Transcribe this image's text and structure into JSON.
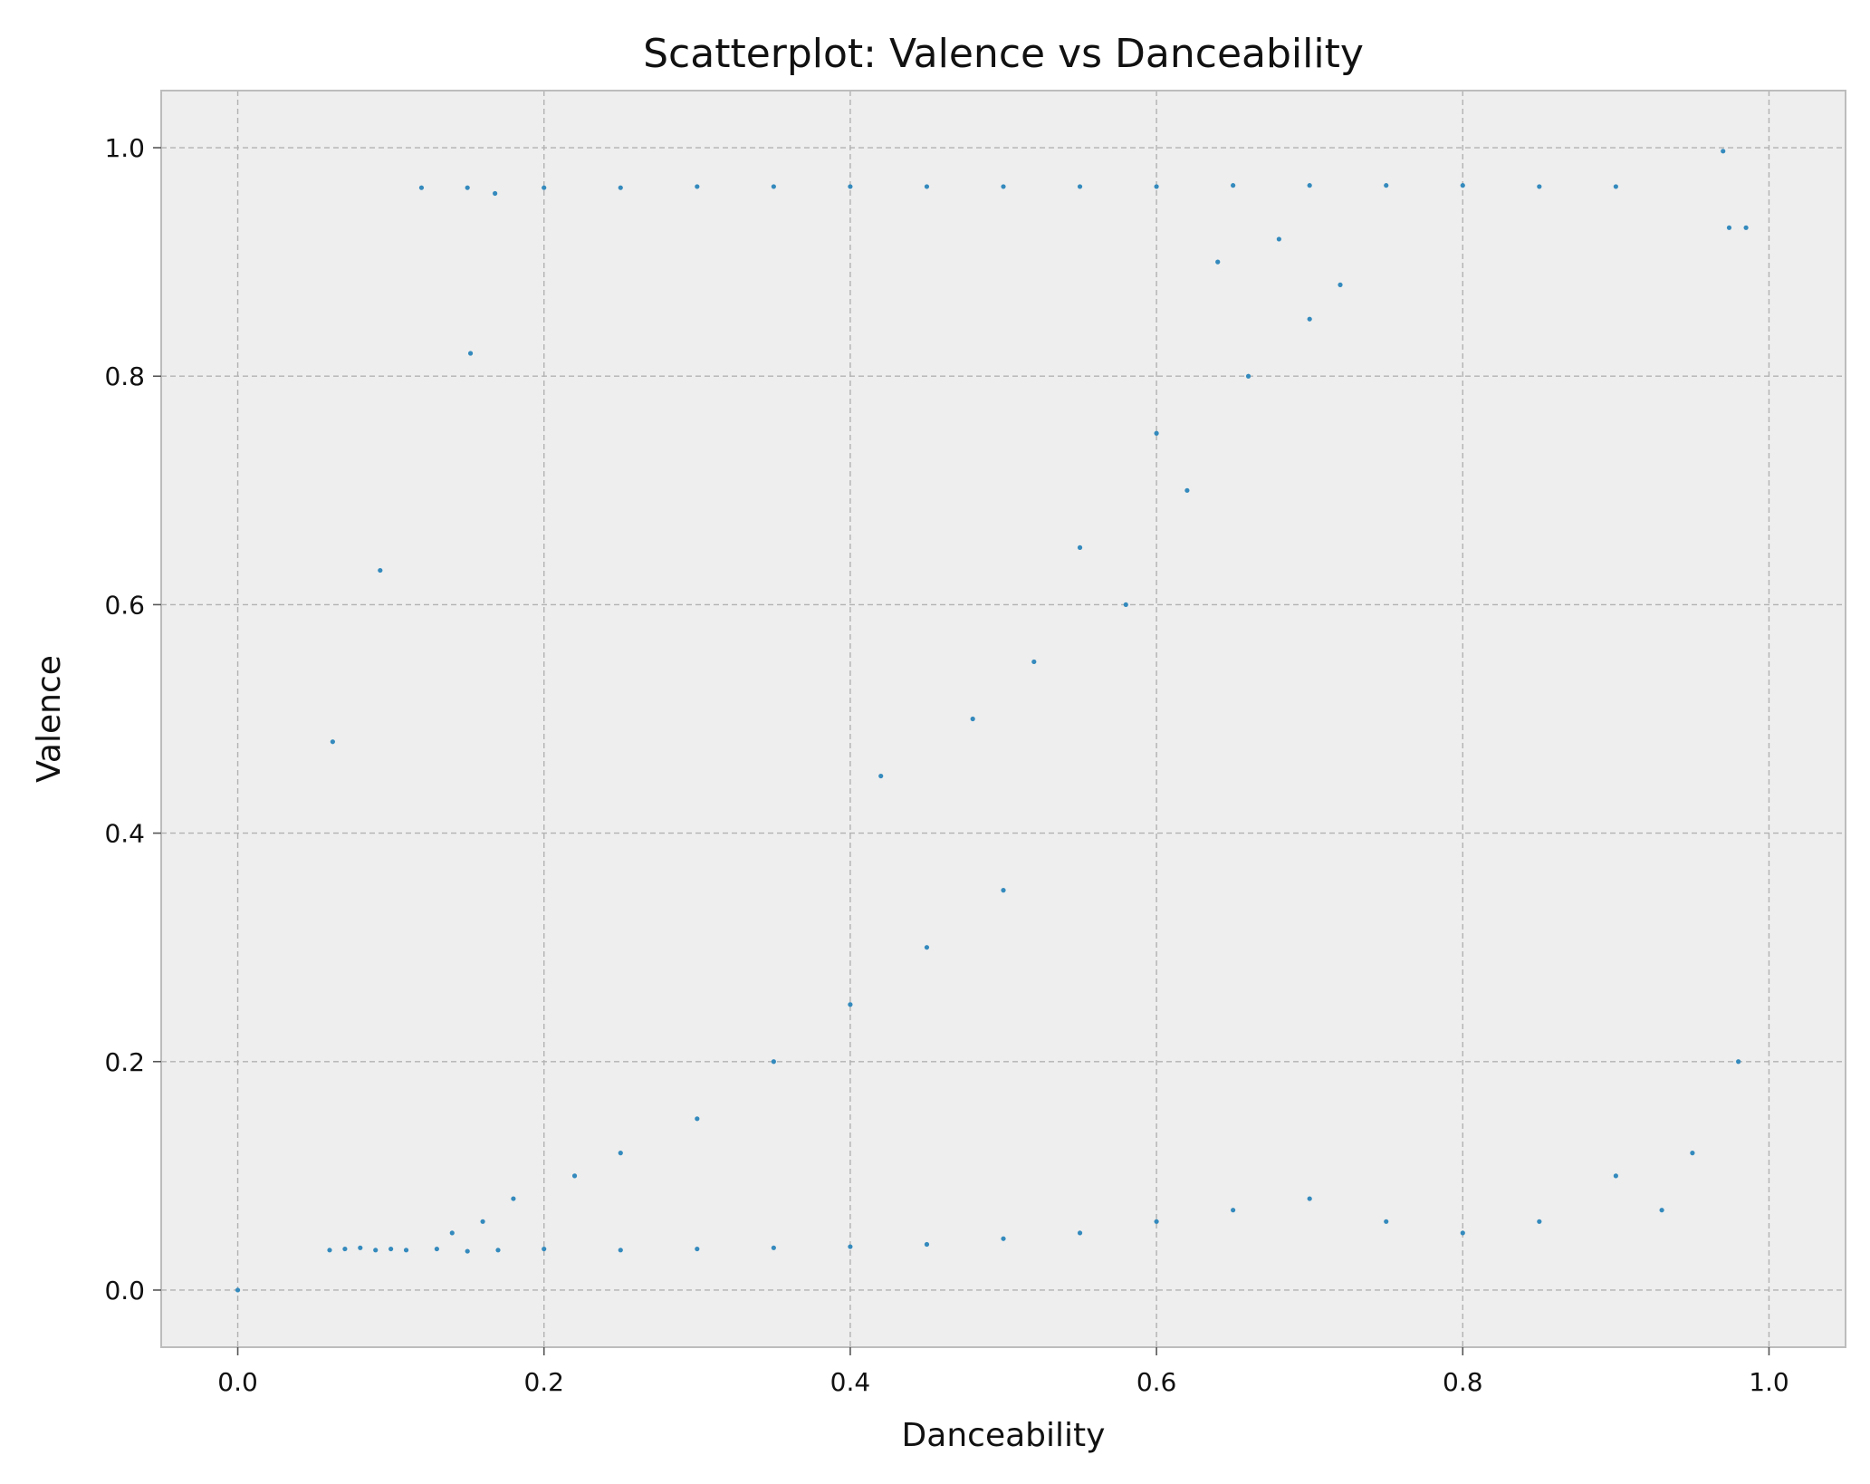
{
  "chart_data": {
    "type": "scatter",
    "title": "Scatterplot: Valence vs Danceability",
    "xlabel": "Danceability",
    "ylabel": "Valence",
    "xlim": [
      -0.05,
      1.05
    ],
    "ylim": [
      -0.05,
      1.05
    ],
    "xticks": [
      0.0,
      0.2,
      0.4,
      0.6,
      0.8,
      1.0
    ],
    "yticks": [
      0.0,
      0.2,
      0.4,
      0.6,
      0.8,
      1.0
    ],
    "xtick_labels": [
      "0.0",
      "0.2",
      "0.4",
      "0.6",
      "0.8",
      "1.0"
    ],
    "ytick_labels": [
      "0.0",
      "0.2",
      "0.4",
      "0.6",
      "0.8",
      "1.0"
    ],
    "grid": true,
    "grid_style": "dashed",
    "point_color": "#348ABD",
    "background_color": "#EEEEEE",
    "series": [
      {
        "x": [
          0.0,
          0.06,
          0.07,
          0.08,
          0.09,
          0.1,
          0.11,
          0.13,
          0.15,
          0.17,
          0.2,
          0.25,
          0.3,
          0.35,
          0.4,
          0.45,
          0.5,
          0.55,
          0.6,
          0.65,
          0.7,
          0.75,
          0.8,
          0.85,
          0.9,
          0.95,
          0.98,
          0.062,
          0.093,
          0.152,
          0.168,
          0.12,
          0.15,
          0.2,
          0.25,
          0.3,
          0.35,
          0.4,
          0.45,
          0.5,
          0.55,
          0.6,
          0.65,
          0.7,
          0.75,
          0.8,
          0.85,
          0.9,
          0.97,
          0.974,
          0.985,
          0.93,
          0.42,
          0.48,
          0.52,
          0.58,
          0.62,
          0.66,
          0.7,
          0.55,
          0.6,
          0.64,
          0.68,
          0.72,
          0.45,
          0.5,
          0.35,
          0.4,
          0.3,
          0.25,
          0.22,
          0.18,
          0.16,
          0.14
        ],
        "y": [
          0.0,
          0.035,
          0.036,
          0.037,
          0.035,
          0.036,
          0.035,
          0.036,
          0.034,
          0.035,
          0.036,
          0.035,
          0.036,
          0.037,
          0.038,
          0.04,
          0.045,
          0.05,
          0.06,
          0.07,
          0.08,
          0.06,
          0.05,
          0.06,
          0.1,
          0.12,
          0.2,
          0.48,
          0.63,
          0.82,
          0.96,
          0.965,
          0.965,
          0.965,
          0.965,
          0.966,
          0.966,
          0.966,
          0.966,
          0.966,
          0.966,
          0.966,
          0.967,
          0.967,
          0.967,
          0.967,
          0.966,
          0.966,
          0.997,
          0.93,
          0.93,
          0.07,
          0.45,
          0.5,
          0.55,
          0.6,
          0.7,
          0.8,
          0.85,
          0.65,
          0.75,
          0.9,
          0.92,
          0.88,
          0.3,
          0.35,
          0.2,
          0.25,
          0.15,
          0.12,
          0.1,
          0.08,
          0.06,
          0.05
        ]
      }
    ]
  }
}
